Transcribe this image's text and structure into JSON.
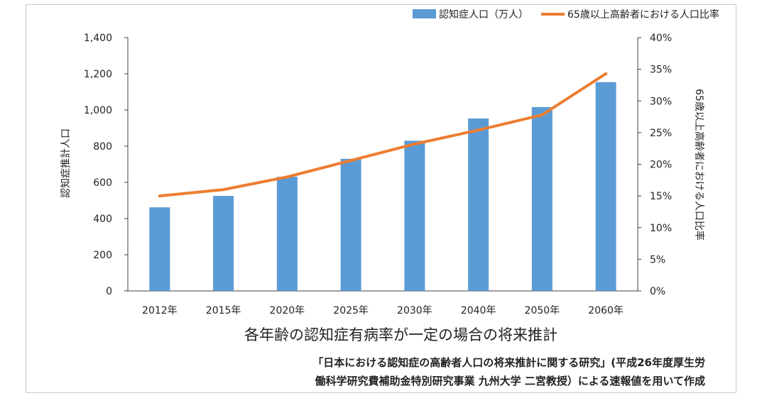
{
  "chart_data": {
    "type": "bar+line",
    "categories": [
      "2012年",
      "2015年",
      "2020年",
      "2025年",
      "2030年",
      "2040年",
      "2050年",
      "2060年"
    ],
    "series": [
      {
        "name": "認知症人口（万人）",
        "type": "bar",
        "axis": "left",
        "values": [
          462,
          525,
          631,
          730,
          830,
          953,
          1016,
          1154
        ]
      },
      {
        "name": "65歳以上高齢者における人口比率",
        "type": "line",
        "axis": "right",
        "values": [
          15.0,
          16.0,
          18.0,
          20.6,
          23.2,
          25.4,
          27.8,
          34.3
        ]
      }
    ],
    "ylabel": "認知症推計人口",
    "y2label": "65歳以上高齢者における人口比率",
    "ylim": [
      0,
      1400
    ],
    "y2lim": [
      0,
      40
    ],
    "yticks": [
      "0",
      "200",
      "400",
      "600",
      "800",
      "1,000",
      "1,200",
      "1,400"
    ],
    "y2ticks": [
      "0%",
      "5%",
      "10%",
      "15%",
      "20%",
      "25%",
      "30%",
      "35%",
      "40%"
    ],
    "legend_position": "top-right",
    "grid": false
  },
  "subtitle": "各年齢の認知症有病率が一定の場合の将来推計",
  "source": {
    "line1": "「日本における認知症の高齢者人口の将来推計に関する研究」(平成26年度厚生労",
    "line2": "働科学研究費補助金特別研究事業 九州大学 二宮教授）による速報値を用いて作成"
  },
  "colors": {
    "bar": "#5b9bd5",
    "line": "#ed7d31",
    "axis": "#404040"
  }
}
